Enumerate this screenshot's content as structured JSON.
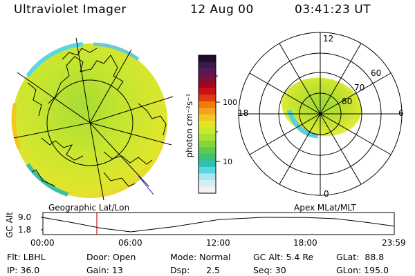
{
  "header": {
    "title": "Ultraviolet Imager",
    "date": "12 Aug 00",
    "time": "03:41:23 UT"
  },
  "colorbar": {
    "label": "photon cm⁻²s⁻¹",
    "scale": "log",
    "ticks": [
      "100",
      "10"
    ],
    "colors": [
      "#1a0f2a",
      "#3a1a48",
      "#551a55",
      "#7a1040",
      "#a00818",
      "#c81414",
      "#e03a10",
      "#f07a0a",
      "#f5a020",
      "#f2c81e",
      "#e0e628",
      "#c8ea2e",
      "#a8e034",
      "#80d63c",
      "#5ccc48",
      "#3cc07a",
      "#30c0b0",
      "#5ad8e0",
      "#a8e6f0",
      "#d6ecf2",
      "#f2f2f2"
    ]
  },
  "map": {
    "caption": "Geographic Lat/Lon"
  },
  "polar": {
    "caption": "Apex MLat/MLT",
    "mlt_labels": [
      "12",
      "18",
      "6",
      "0"
    ],
    "mlat_labels": [
      "60",
      "70",
      "80"
    ]
  },
  "timeline": {
    "ylabel": "GC Alt",
    "yticks": [
      "9.0",
      "1.8"
    ],
    "xticks": [
      "00:00",
      "06:00",
      "12:00",
      "18:00",
      "23:59"
    ],
    "marker_time": "03:41"
  },
  "chart_data": [
    {
      "type": "line",
      "title": "",
      "xlabel": "",
      "ylabel": "GC Alt",
      "x": [
        "00:00",
        "02:00",
        "04:00",
        "06:00",
        "09:00",
        "12:00",
        "15:00",
        "18:00",
        "20:00",
        "22:00",
        "23:59"
      ],
      "values": [
        8.9,
        6.4,
        3.6,
        1.8,
        4.4,
        7.9,
        9.0,
        8.9,
        8.3,
        6.6,
        4.6
      ],
      "ylim": [
        1.8,
        9.0
      ],
      "marker": "03:41"
    }
  ],
  "status": {
    "flt": "Flt: LBHL",
    "door": "Door: Open",
    "mode": "Mode: Normal",
    "gc_alt": "GC Alt: 5.4 Re",
    "glat": "GLat:  88.8",
    "ip": "IP: 36.0",
    "gain": "Gain: 13",
    "dsp": "Dsp:      2.5",
    "seq": "Seq: 30",
    "glon": "GLon: 195.0"
  }
}
